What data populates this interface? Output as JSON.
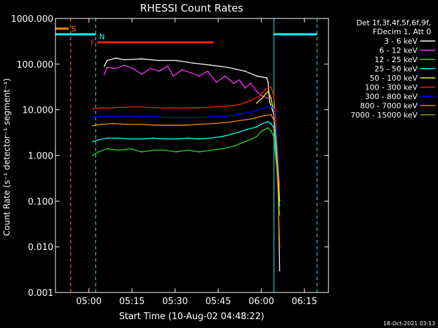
{
  "chart_data": {
    "type": "line",
    "title": "RHESSI Count Rates",
    "xlabel": "Start Time (10-Aug-02 04:48:22)",
    "ylabel": "Count Rate (s⁻¹ detector⁻¹ segment⁻¹)",
    "x_unit": "minutes after 04:48:22",
    "xlim": [
      0,
      95
    ],
    "ylim": [
      0.001,
      1000
    ],
    "y_scale": "log",
    "grid": false,
    "legend_position": "right",
    "x_ticks": [
      {
        "label": "05:00",
        "value": 11.63
      },
      {
        "label": "05:15",
        "value": 26.63
      },
      {
        "label": "05:30",
        "value": 41.63
      },
      {
        "label": "05:45",
        "value": 56.63
      },
      {
        "label": "06:00",
        "value": 71.63
      },
      {
        "label": "06:15",
        "value": 86.63
      }
    ],
    "y_ticks": [
      {
        "label": "1000.000",
        "value": 1000
      },
      {
        "label": "100.000",
        "value": 100
      },
      {
        "label": "10.000",
        "value": 10
      },
      {
        "label": "1.000",
        "value": 1
      },
      {
        "label": "0.100",
        "value": 0.1
      },
      {
        "label": "0.010",
        "value": 0.01
      },
      {
        "label": "0.001",
        "value": 0.001
      }
    ],
    "legend_header": [
      "Det 1f,3f,4f,5f,6f,9f,",
      "FDecim 1, Att 0"
    ],
    "series": [
      {
        "name": "3 - 6 keV",
        "color": "#ffffff",
        "x": [
          17,
          18,
          21,
          24,
          30,
          36,
          42,
          48,
          54,
          60,
          66,
          70,
          73.5,
          74,
          74.5,
          76,
          77.5,
          78
        ],
        "y": [
          90,
          120,
          135,
          125,
          130,
          120,
          120,
          105,
          95,
          85,
          70,
          55,
          50,
          40,
          15,
          8,
          0.2,
          0.003
        ]
      },
      {
        "name": "6 - 12 keV",
        "color": "#ff33ff",
        "x": [
          17,
          18,
          21,
          24,
          27,
          30,
          33,
          36,
          39,
          41,
          44,
          47,
          50,
          53,
          56,
          59,
          62,
          64,
          66,
          68,
          70,
          72,
          74
        ],
        "y": [
          60,
          85,
          80,
          95,
          80,
          60,
          80,
          70,
          90,
          55,
          75,
          65,
          55,
          70,
          40,
          55,
          38,
          45,
          30,
          38,
          25,
          20,
          18
        ]
      },
      {
        "name": "12 - 25 keV",
        "color": "#22dd22",
        "x": [
          13,
          15,
          18,
          22,
          26,
          30,
          34,
          38,
          42,
          46,
          50,
          54,
          58,
          62,
          66,
          70,
          72,
          74,
          75,
          76,
          77,
          78
        ],
        "y": [
          1.0,
          1.2,
          1.4,
          1.3,
          1.4,
          1.2,
          1.3,
          1.3,
          1.2,
          1.3,
          1.2,
          1.3,
          1.4,
          1.6,
          2.0,
          2.6,
          3.5,
          4.0,
          3.5,
          2.5,
          0.5,
          0.05
        ]
      },
      {
        "name": "25 - 50 keV",
        "color": "#00ffff",
        "x": [
          13,
          15,
          18,
          22,
          26,
          30,
          34,
          38,
          42,
          46,
          50,
          54,
          58,
          62,
          66,
          70,
          72,
          74,
          75,
          76,
          77,
          78
        ],
        "y": [
          2.0,
          2.2,
          2.4,
          2.4,
          2.3,
          2.3,
          2.4,
          2.3,
          2.3,
          2.4,
          2.3,
          2.4,
          2.6,
          3.0,
          3.6,
          4.2,
          5.0,
          5.5,
          5.0,
          4.0,
          1.0,
          0.08
        ]
      },
      {
        "name": "50 - 100 keV",
        "color": "#ffff00",
        "x": [
          70,
          72,
          73,
          74,
          75,
          76,
          77,
          78
        ],
        "y": [
          14,
          18,
          22,
          25,
          18,
          8,
          1.5,
          0.1
        ]
      },
      {
        "name": "100 - 300 keV",
        "color": "#ff2200",
        "x": [
          13,
          16,
          20,
          25,
          30,
          35,
          40,
          45,
          50,
          55,
          60,
          64,
          68,
          71,
          73,
          75,
          76,
          77,
          78
        ],
        "y": [
          10.5,
          11,
          11,
          11.5,
          11.5,
          11,
          11,
          11,
          11,
          11.5,
          12,
          13,
          16,
          20,
          28,
          32,
          20,
          3,
          0.2
        ]
      },
      {
        "name": "300 - 800 keV",
        "color": "#0000ff",
        "x": [
          13,
          16,
          20,
          25,
          30,
          35,
          40,
          45,
          50,
          55,
          60,
          64,
          68,
          71,
          73,
          75,
          76,
          77,
          78
        ],
        "y": [
          7,
          7,
          7.2,
          7,
          7.2,
          7,
          6.8,
          6.8,
          6.8,
          7,
          7.2,
          8,
          9,
          10,
          11,
          12,
          10,
          3,
          0.3
        ]
      },
      {
        "name": "800 - 7000 keV",
        "color": "#ff8800",
        "x": [
          13,
          16,
          20,
          25,
          30,
          35,
          40,
          45,
          50,
          55,
          60,
          64,
          68,
          71,
          73,
          75,
          76,
          77,
          78
        ],
        "y": [
          4.5,
          4.8,
          5,
          4.8,
          4.8,
          4.6,
          4.6,
          4.6,
          4.8,
          5,
          5.3,
          5.8,
          6.3,
          7,
          7.5,
          7.8,
          6,
          1.5,
          0.01
        ]
      },
      {
        "name": "7000 - 15000 keV",
        "color": "#889900",
        "x": [],
        "y": []
      }
    ],
    "annotations": [
      {
        "label": "S",
        "color": "#ff8800",
        "x_start": 0,
        "x_end": 4.6,
        "y": 600
      },
      {
        "label": "N",
        "color": "#00ffff",
        "x_start": 14,
        "x_end": 14.3,
        "y": 400
      },
      {
        "label": "F",
        "color": "#ff2200",
        "x_start": 14.6,
        "x_end": 55,
        "y": 300
      }
    ],
    "vertical_markers": [
      {
        "x": 5.3,
        "color": "#ff8800",
        "style": "dashed"
      },
      {
        "x": 14,
        "color": "#00ffff",
        "style": "dashed"
      },
      {
        "x": 76,
        "color": "#00ffff",
        "style": "solid"
      },
      {
        "x": 91,
        "color": "#00ffff",
        "style": "dashed"
      }
    ],
    "attenuator_bars": [
      {
        "color": "#00ffff",
        "x_start": 0,
        "x_end": 14,
        "y": 450
      },
      {
        "color": "#00ffff",
        "x_start": 76,
        "x_end": 91,
        "y": 450
      }
    ]
  },
  "footer": {
    "timestamp": "18-Oct-2021 03:13"
  }
}
